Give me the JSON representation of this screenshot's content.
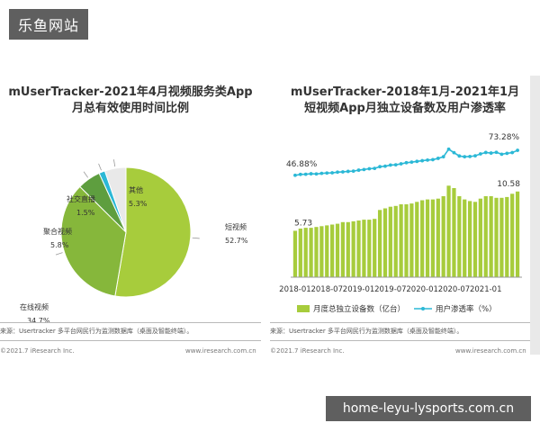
{
  "site_badge": "乐鱼网站",
  "watermark": "home-leyu-lysports.com.cn",
  "chart_data": [
    {
      "type": "pie",
      "title_line1": "mUserTracker-2021年4月视频服务类App",
      "title_line2": "月总有效使用时间比例",
      "slices": [
        {
          "name": "短视频",
          "value": 52.7,
          "label": "52.7%",
          "color": "#a7cc3c"
        },
        {
          "name": "在线视频",
          "value": 34.7,
          "label": "34.7%",
          "color": "#86b73b"
        },
        {
          "name": "聚合视频",
          "value": 5.8,
          "label": "5.8%",
          "color": "#5e9e3f"
        },
        {
          "name": "社交直播",
          "value": 1.5,
          "label": "1.5%",
          "color": "#2bb8d6"
        },
        {
          "name": "其他",
          "value": 5.3,
          "label": "5.3%",
          "color": "#e9e9e9"
        }
      ],
      "source": "来源：Usertracker 多平台网民行为监测数据库（桌面及智能终端）。",
      "copyright": "©2021.7 iResearch Inc.",
      "site": "www.iresearch.com.cn"
    },
    {
      "type": "bar+line",
      "title_line1": "mUserTracker-2018年1月-2021年1月",
      "title_line2": "短视频App月独立设备数及用户渗透率",
      "x_labels": [
        "2018-01",
        "2018-07",
        "2019-01",
        "2019-07",
        "2020-01",
        "2020-07",
        "2021-01"
      ],
      "ylim": [
        0,
        14
      ],
      "bar_values": [
        5.73,
        6.0,
        6.1,
        6.1,
        6.2,
        6.3,
        6.4,
        6.5,
        6.6,
        6.8,
        6.8,
        6.9,
        7.0,
        7.1,
        7.1,
        7.2,
        8.3,
        8.5,
        8.7,
        8.8,
        9.0,
        9.0,
        9.1,
        9.3,
        9.5,
        9.6,
        9.6,
        9.7,
        10.0,
        11.3,
        11.0,
        10.0,
        9.6,
        9.4,
        9.3,
        9.7,
        10.0,
        10.0,
        9.8,
        9.8,
        9.9,
        10.3,
        10.58
      ],
      "line_values": [
        46.88,
        47.8,
        48.0,
        48.5,
        48.3,
        48.9,
        49.3,
        49.5,
        50.2,
        50.5,
        51.0,
        51.3,
        52.3,
        53.0,
        53.8,
        54.2,
        56.0,
        56.5,
        57.7,
        58.0,
        59.0,
        60.2,
        60.8,
        61.6,
        62.3,
        63.0,
        63.4,
        64.8,
        66.5,
        74.5,
        70.8,
        67.3,
        66.5,
        66.8,
        67.5,
        69.5,
        71.0,
        70.4,
        71.2,
        69.2,
        70.1,
        70.9,
        73.28
      ],
      "line_ylim": [
        0,
        100
      ],
      "first_bar_label": "5.73",
      "last_bar_label": "10.58",
      "first_line_label": "46.88%",
      "last_line_label": "73.28%",
      "legend_bar": "月度总独立设备数（亿台）",
      "legend_line": "用户渗透率（%）",
      "bar_color": "#a7cc3c",
      "line_color": "#2bb8d6",
      "source": "来源：Usertracker 多平台网民行为监测数据库（桌面及智能终端）。",
      "copyright": "©2021.7 iResearch Inc.",
      "site": "www.iresearch.com.cn"
    }
  ]
}
